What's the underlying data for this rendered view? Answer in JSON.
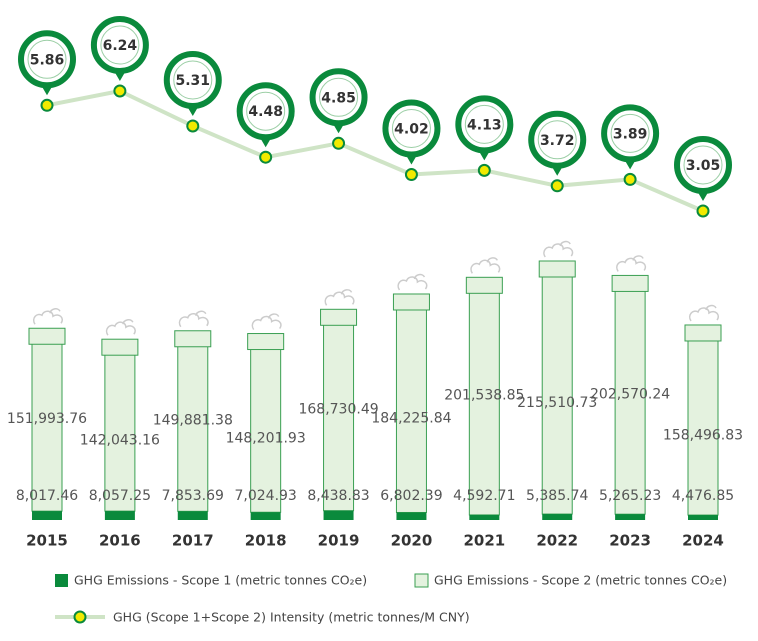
{
  "chart_data": {
    "type": "bar",
    "stacked": true,
    "categories": [
      "2015",
      "2016",
      "2017",
      "2018",
      "2019",
      "2020",
      "2021",
      "2022",
      "2023",
      "2024"
    ],
    "series": [
      {
        "name": "GHG Emissions - Scope 1 (metric tonnes CO₂e)",
        "color": "#0a8a3c",
        "values": [
          8017.46,
          8057.25,
          7853.69,
          7024.93,
          8438.83,
          6802.39,
          4592.71,
          5385.74,
          5265.23,
          4476.85
        ],
        "value_labels": [
          "8,017.46",
          "8,057.25",
          "7,853.69",
          "7,024.93",
          "8,438.83",
          "6,802.39",
          "4,592.71",
          "5,385.74",
          "5,265.23",
          "4,476.85"
        ]
      },
      {
        "name": "GHG Emissions - Scope 2 (metric tonnes CO₂e)",
        "color": "#e4f2df",
        "values": [
          151993.76,
          142043.16,
          149881.38,
          148201.93,
          168730.49,
          184225.84,
          201538.85,
          215510.73,
          202570.24,
          158496.83
        ],
        "value_labels": [
          "151,993.76",
          "142,043.16",
          "149,881.38",
          "148,201.93",
          "168,730.49",
          "184,225.84",
          "201,538.85",
          "215,510.73",
          "202,570.24",
          "158,496.83"
        ]
      },
      {
        "name": "GHG (Scope 1+Scope 2) Intensity (metric tonnes/M CNY)",
        "type": "line",
        "color": "#cfe4c6",
        "values": [
          5.86,
          6.24,
          5.31,
          4.48,
          4.85,
          4.02,
          4.13,
          3.72,
          3.89,
          3.05
        ]
      }
    ]
  }
}
